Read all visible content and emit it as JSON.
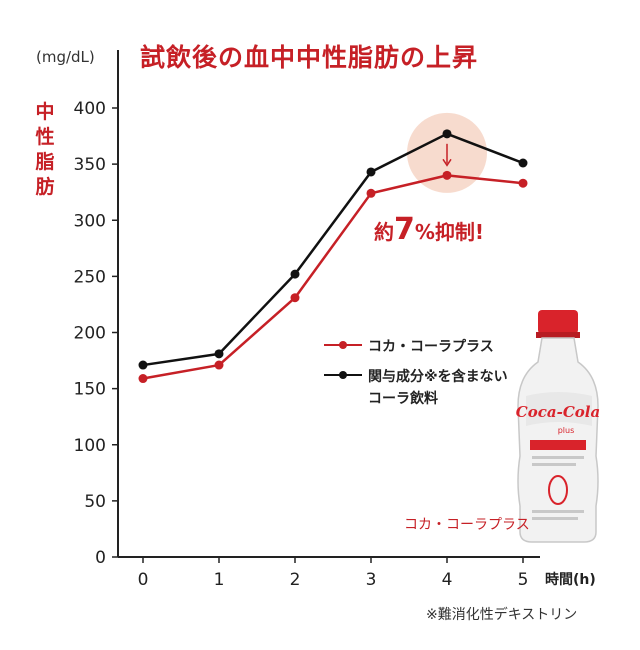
{
  "title": "試飲後の血中中性脂肪の上昇",
  "unit_label": "(mg/dL)",
  "ylabel_vertical": "中性脂肪",
  "xlabel": "時間(h)",
  "callout": {
    "prefix": "約",
    "number": "7",
    "suffix": "%抑制!"
  },
  "footnote": "※難消化性デキストリン",
  "product_label": "コカ・コーラプラス",
  "bottle": {
    "brand": "Coca-Cola",
    "sub": "plus"
  },
  "colors": {
    "coke_plus": "#c62026",
    "control": "#111111",
    "highlight": "#f6d5c6"
  },
  "chart_data": {
    "type": "line",
    "title": "試飲後の血中中性脂肪の上昇",
    "xlabel": "時間(h)",
    "ylabel": "中性脂肪 (mg/dL)",
    "x": [
      0,
      1,
      2,
      3,
      4,
      5
    ],
    "ylim": [
      0,
      400
    ],
    "yticks": [
      0,
      50,
      100,
      150,
      200,
      250,
      300,
      350,
      400
    ],
    "grid": false,
    "legend_position": "right",
    "series": [
      {
        "name": "コカ・コーラプラス",
        "color": "#c62026",
        "values": [
          159,
          171,
          231,
          324,
          340,
          333
        ]
      },
      {
        "name": "関与成分※を含まない\nコーラ飲料",
        "color": "#111111",
        "values": [
          171,
          181,
          252,
          343,
          377,
          351
        ]
      }
    ],
    "annotation": {
      "x": 4,
      "text": "約7%抑制!"
    }
  }
}
